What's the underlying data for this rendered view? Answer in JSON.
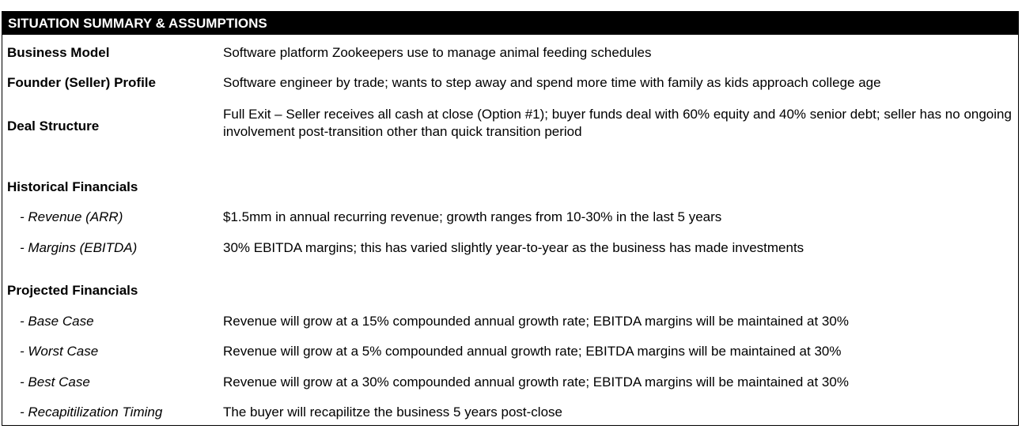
{
  "title": "SITUATION SUMMARY & ASSUMPTIONS",
  "rows": [
    {
      "label": "Business Model",
      "value": "Software platform Zookeepers use to manage animal feeding schedules"
    },
    {
      "label": "Founder (Seller) Profile",
      "value": "Software engineer by trade; wants to step away and spend more time with family as kids approach college age"
    },
    {
      "label": "Deal Structure",
      "value": "Full Exit – Seller receives all cash at close (Option #1); buyer funds deal with 60% equity and 40% senior debt; seller has no ongoing involvement post-transition other than quick transition period"
    }
  ],
  "historical": {
    "heading": "Historical Financials",
    "items": [
      {
        "label": "- Revenue (ARR)",
        "value": "$1.5mm in annual recurring revenue; growth ranges from 10-30% in the last 5 years"
      },
      {
        "label": "- Margins (EBITDA)",
        "value": "30% EBITDA margins; this has varied slightly year-to-year as the business has made investments"
      }
    ]
  },
  "projected": {
    "heading": "Projected Financials",
    "items": [
      {
        "label": "- Base Case",
        "value": "Revenue will grow at a 15% compounded annual growth rate; EBITDA margins will be maintained at 30%"
      },
      {
        "label": "- Worst Case",
        "value": "Revenue will grow at a 5% compounded annual growth rate; EBITDA margins will be maintained at 30%"
      },
      {
        "label": "- Best Case",
        "value": "Revenue will grow at a 30% compounded annual growth rate; EBITDA margins will be maintained at 30%"
      },
      {
        "label": "- Recapitilization Timing",
        "value": "The buyer will recapilitze the business 5 years post-close"
      }
    ]
  }
}
